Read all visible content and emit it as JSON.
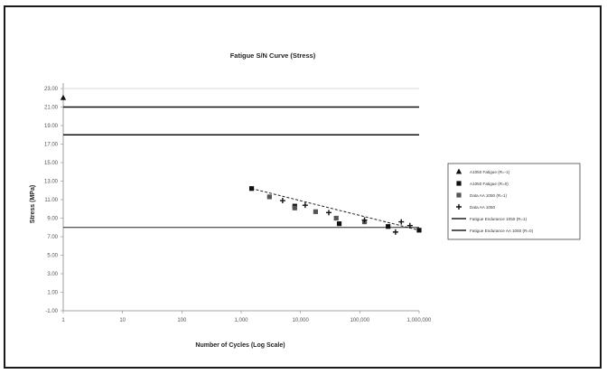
{
  "chart_data": {
    "type": "scatter",
    "title": "Fatigue S/N Curve (Stress)",
    "xlabel": "Number of Cycles (Log Scale)",
    "ylabel": "Stress (MPa)",
    "x_ticks": [
      "1",
      "10",
      "100",
      "1,000",
      "10,000",
      "100,000",
      "1,000,000"
    ],
    "y_ticks": [
      "-1.00",
      "1.00",
      "3.00",
      "5.00",
      "7.00",
      "9.00",
      "11.00",
      "13.00",
      "15.00",
      "17.00",
      "19.00",
      "21.00",
      "23.00"
    ],
    "xlim": [
      1,
      1000000
    ],
    "x_scale": "log",
    "ylim": [
      -1,
      23
    ],
    "grid": {
      "y": true,
      "x": false
    },
    "legend_position": "right",
    "series": [
      {
        "name": "A1050 Fatigue (R=-1)",
        "marker": "triangle",
        "points": [
          [
            1,
            22.0
          ]
        ]
      },
      {
        "name": "A1050 Fatigue (R=0)",
        "marker": "square",
        "points": [
          [
            1500,
            12.2
          ],
          [
            8000,
            10.3
          ],
          [
            45000,
            8.4
          ],
          [
            300000,
            8.1
          ],
          [
            1000000,
            7.7
          ]
        ]
      },
      {
        "name": "Data AA 1050 (R=1)",
        "marker": "square-gray",
        "points": [
          [
            3000,
            11.3
          ],
          [
            8000,
            10.1
          ],
          [
            18000,
            9.7
          ],
          [
            40000,
            9.0
          ],
          [
            120000,
            8.6
          ]
        ]
      },
      {
        "name": "Data AA 1050",
        "marker": "cross",
        "points": [
          [
            5000,
            10.9
          ],
          [
            12000,
            10.4
          ],
          [
            30000,
            9.6
          ],
          [
            120000,
            8.8
          ],
          [
            400000,
            7.5
          ],
          [
            500000,
            8.6
          ],
          [
            700000,
            8.2
          ]
        ]
      },
      {
        "name": "Fatigue Endurance 1050 (R=1)",
        "marker": "line",
        "points": [
          [
            1,
            18.0
          ],
          [
            1000000,
            18.0
          ]
        ]
      },
      {
        "name": "Fatigue Endurance AA 1050 (R=0)",
        "marker": "line",
        "points": [
          [
            1,
            21.0
          ],
          [
            1000000,
            21.0
          ]
        ]
      },
      {
        "name": "",
        "marker": "line-light",
        "points": [
          [
            1,
            23.0
          ],
          [
            1000000,
            23.0
          ]
        ]
      },
      {
        "name": "",
        "marker": "line-thin",
        "points": [
          [
            1,
            8.0
          ],
          [
            1000000,
            8.0
          ]
        ]
      }
    ],
    "trend_line": {
      "style": "dashed",
      "points": [
        [
          1500,
          12.2
        ],
        [
          1000000,
          7.7
        ]
      ]
    }
  }
}
